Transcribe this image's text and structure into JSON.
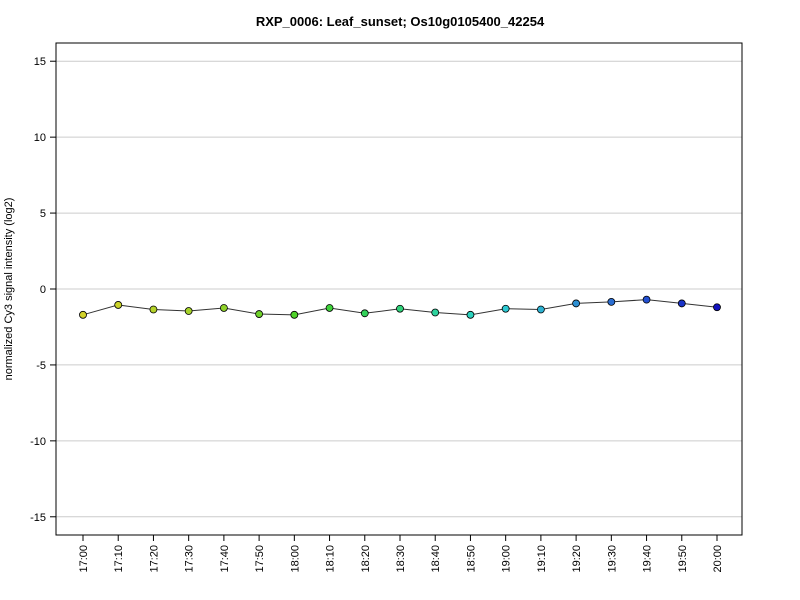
{
  "chart_data": {
    "type": "line",
    "title": "RXP_0006: Leaf_sunset; Os10g0105400_42254",
    "xlabel": "",
    "ylabel": "normalized Cy3 signal intensity (log2)",
    "ylim": [
      -16.2,
      16.2
    ],
    "yticks": [
      15,
      10,
      5,
      0,
      -5,
      -10,
      -15
    ],
    "ytick_labels": [
      "15",
      "10",
      "5",
      "0",
      "-5",
      "-10",
      "-15"
    ],
    "grid": "horizontal",
    "categories": [
      "17:00",
      "17:10",
      "17:20",
      "17:30",
      "17:40",
      "17:50",
      "18:00",
      "18:10",
      "18:20",
      "18:30",
      "18:40",
      "18:50",
      "19:00",
      "19:10",
      "19:20",
      "19:30",
      "19:40",
      "19:50",
      "20:00"
    ],
    "series": [
      {
        "values": [
          -1.7,
          -1.05,
          -1.35,
          -1.45,
          -1.25,
          -1.65,
          -1.7,
          -1.25,
          -1.6,
          -1.3,
          -1.55,
          -1.7,
          -1.3,
          -1.35,
          -0.95,
          -0.85,
          -0.7,
          -0.95,
          -1.2
        ],
        "point_colors": [
          "#d2d22a",
          "#cbd32a",
          "#b5d22a",
          "#a6d22a",
          "#8fd22a",
          "#6fd22a",
          "#4fd22a",
          "#3ed23a",
          "#33d25a",
          "#30d27a",
          "#2dd29d",
          "#2bd2be",
          "#2dc9d2",
          "#2db2d2",
          "#2c8fd2",
          "#2b6ed2",
          "#2350d2",
          "#1a33c8",
          "#1414bf"
        ],
        "line_color": "#333333"
      }
    ]
  }
}
